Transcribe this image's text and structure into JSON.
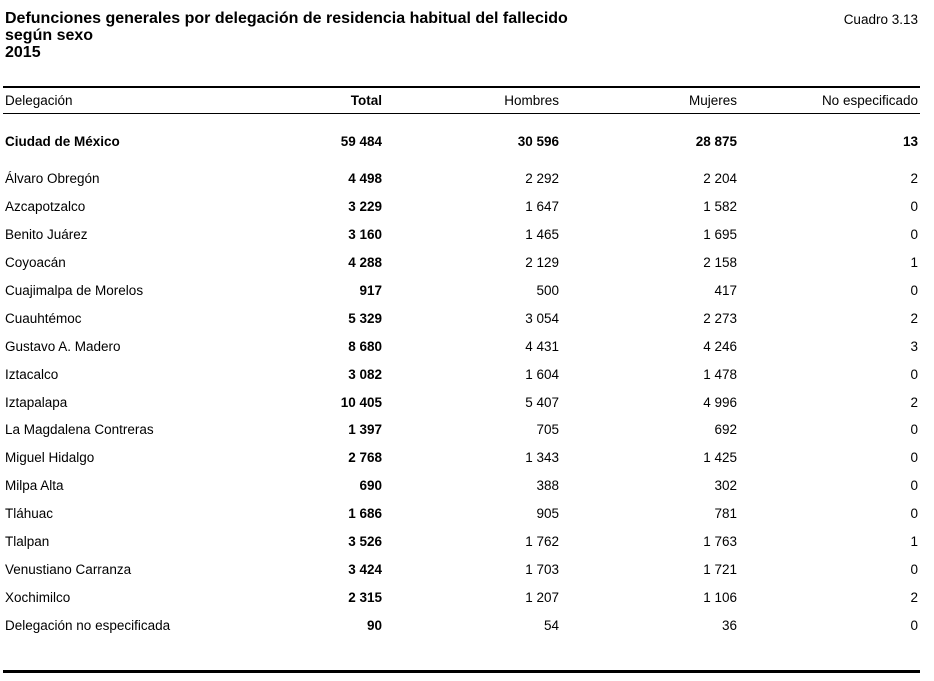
{
  "header": {
    "title_lines": [
      "Defunciones generales por delegación de residencia habitual del fallecido",
      "según sexo",
      "2015"
    ],
    "cuadro": "Cuadro 3.13"
  },
  "table": {
    "columns": [
      "Delegación",
      "Total",
      "Hombres",
      "Mujeres",
      "No especificado"
    ],
    "total_row": [
      "Ciudad de México",
      "59 484",
      "30 596",
      "28 875",
      "13"
    ],
    "rows": [
      [
        "Álvaro Obregón",
        "4 498",
        "2 292",
        "2 204",
        "2"
      ],
      [
        "Azcapotzalco",
        "3 229",
        "1 647",
        "1 582",
        "0"
      ],
      [
        "Benito Juárez",
        "3 160",
        "1 465",
        "1 695",
        "0"
      ],
      [
        "Coyoacán",
        "4 288",
        "2 129",
        "2 158",
        "1"
      ],
      [
        "Cuajimalpa de Morelos",
        "917",
        "500",
        "417",
        "0"
      ],
      [
        "Cuauhtémoc",
        "5 329",
        "3 054",
        "2 273",
        "2"
      ],
      [
        "Gustavo A. Madero",
        "8 680",
        "4 431",
        "4 246",
        "3"
      ],
      [
        "Iztacalco",
        "3 082",
        "1 604",
        "1 478",
        "0"
      ],
      [
        "Iztapalapa",
        "10 405",
        "5 407",
        "4 996",
        "2"
      ],
      [
        "La Magdalena Contreras",
        "1 397",
        "705",
        "692",
        "0"
      ],
      [
        "Miguel Hidalgo",
        "2 768",
        "1 343",
        "1 425",
        "0"
      ],
      [
        "Milpa Alta",
        "690",
        "388",
        "302",
        "0"
      ],
      [
        "Tláhuac",
        "1 686",
        "905",
        "781",
        "0"
      ],
      [
        "Tlalpan",
        "3 526",
        "1 762",
        "1 763",
        "1"
      ],
      [
        "Venustiano Carranza",
        "3 424",
        "1 703",
        "1 721",
        "0"
      ],
      [
        "Xochimilco",
        "2 315",
        "1 207",
        "1 106",
        "2"
      ],
      [
        "Delegación no especificada",
        "90",
        "54",
        "36",
        "0"
      ]
    ]
  }
}
